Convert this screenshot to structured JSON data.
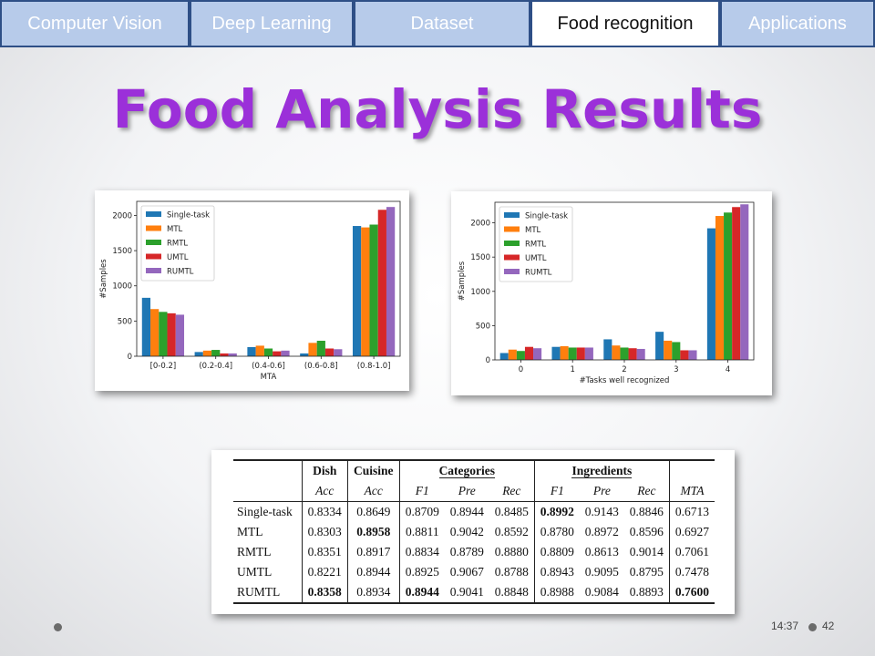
{
  "tabs": [
    {
      "label": "Computer Vision",
      "active": false
    },
    {
      "label": "Deep Learning",
      "active": false
    },
    {
      "label": "Dataset",
      "active": false
    },
    {
      "label": "Food recognition",
      "active": true
    },
    {
      "label": "Applications",
      "active": false
    }
  ],
  "title": "Food Analysis Results",
  "colors": {
    "Single-task": "#1f77b4",
    "MTL": "#ff7f0e",
    "RMTL": "#2ca02c",
    "UMTL": "#d62728",
    "RUMTL": "#9467bd"
  },
  "chart_data": [
    {
      "type": "bar",
      "categories": [
        "[0-0.2]",
        "(0.2-0.4]",
        "(0.4-0.6]",
        "(0.6-0.8]",
        "(0.8-1.0]"
      ],
      "xlabel": "MTA",
      "ylabel": "#Samples",
      "ylim": [
        0,
        2200
      ],
      "yticks": [
        0,
        500,
        1000,
        1500,
        2000
      ],
      "legend": "top-left",
      "grid": false,
      "series": [
        {
          "name": "Single-task",
          "values": [
            830,
            60,
            130,
            40,
            1850
          ]
        },
        {
          "name": "MTL",
          "values": [
            670,
            80,
            150,
            190,
            1830
          ]
        },
        {
          "name": "RMTL",
          "values": [
            630,
            90,
            110,
            220,
            1870
          ]
        },
        {
          "name": "UMTL",
          "values": [
            610,
            40,
            70,
            110,
            2080
          ]
        },
        {
          "name": "RUMTL",
          "values": [
            590,
            40,
            80,
            100,
            2120
          ]
        }
      ]
    },
    {
      "type": "bar",
      "categories": [
        "0",
        "1",
        "2",
        "3",
        "4"
      ],
      "xlabel": "#Tasks well recognized",
      "ylabel": "#Samples",
      "ylim": [
        0,
        2300
      ],
      "yticks": [
        0,
        500,
        1000,
        1500,
        2000
      ],
      "legend": "top-left",
      "grid": false,
      "series": [
        {
          "name": "Single-task",
          "values": [
            100,
            190,
            300,
            410,
            1920
          ]
        },
        {
          "name": "MTL",
          "values": [
            150,
            200,
            210,
            280,
            2100
          ]
        },
        {
          "name": "RMTL",
          "values": [
            130,
            180,
            180,
            260,
            2150
          ]
        },
        {
          "name": "UMTL",
          "values": [
            190,
            180,
            170,
            140,
            2230
          ]
        },
        {
          "name": "RUMTL",
          "values": [
            170,
            180,
            160,
            140,
            2270
          ]
        }
      ]
    }
  ],
  "table": {
    "groups": [
      "Dish",
      "Cuisine",
      "Categories",
      "Ingredients"
    ],
    "subheaders": [
      "Acc",
      "Acc",
      "F1",
      "Pre",
      "Rec",
      "F1",
      "Pre",
      "Rec",
      "MTA"
    ],
    "rows": [
      {
        "name": "Single-task",
        "values": [
          "0.8334",
          "0.8649",
          "0.8709",
          "0.8944",
          "0.8485",
          "0.8992",
          "0.9143",
          "0.8846",
          "0.6713"
        ]
      },
      {
        "name": "MTL",
        "values": [
          "0.8303",
          "0.8958",
          "0.8811",
          "0.9042",
          "0.8592",
          "0.8780",
          "0.8972",
          "0.8596",
          "0.6927"
        ]
      },
      {
        "name": "RMTL",
        "values": [
          "0.8351",
          "0.8917",
          "0.8834",
          "0.8789",
          "0.8880",
          "0.8809",
          "0.8613",
          "0.9014",
          "0.7061"
        ]
      },
      {
        "name": "UMTL",
        "values": [
          "0.8221",
          "0.8944",
          "0.8925",
          "0.9067",
          "0.8788",
          "0.8943",
          "0.9095",
          "0.8795",
          "0.7478"
        ]
      },
      {
        "name": "RUMTL",
        "values": [
          "0.8358",
          "0.8934",
          "0.8944",
          "0.9041",
          "0.8848",
          "0.8988",
          "0.9084",
          "0.8893",
          "0.7600"
        ]
      }
    ],
    "bold": [
      [
        0,
        5
      ],
      [
        1,
        1
      ],
      [
        4,
        0
      ],
      [
        4,
        2
      ],
      [
        4,
        8
      ]
    ]
  },
  "footer": {
    "time": "14:37",
    "page": "42"
  }
}
